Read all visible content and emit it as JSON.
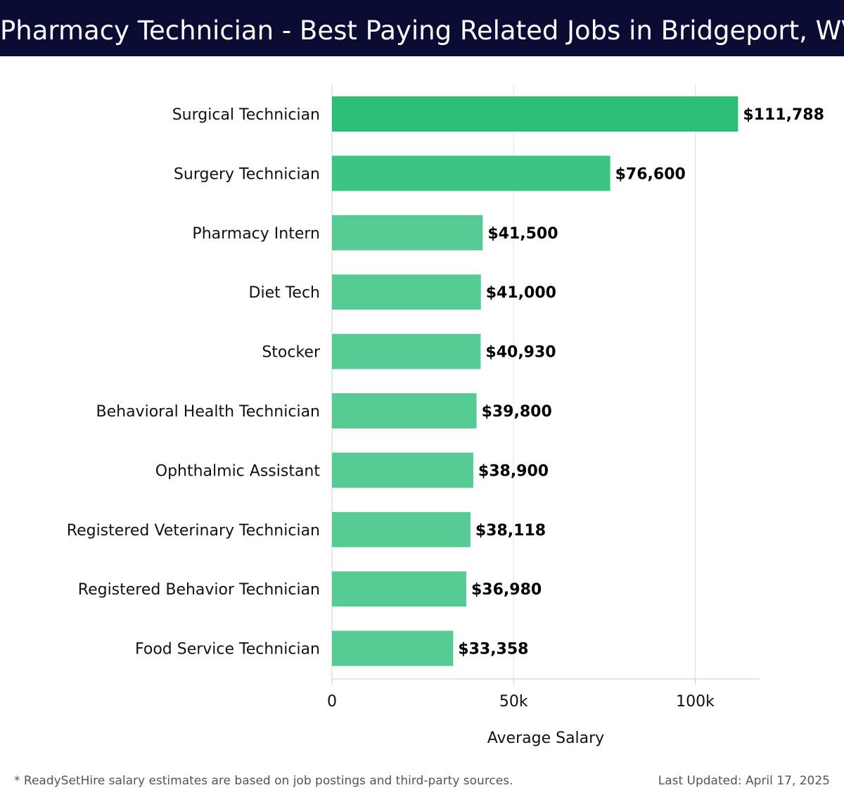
{
  "header": {
    "title": "Pharmacy Technician - Best Paying Related Jobs in Bridgeport, WV"
  },
  "chart_data": {
    "type": "bar",
    "orientation": "horizontal",
    "title": "Pharmacy Technician - Best Paying Related Jobs in Bridgeport, WV",
    "xlabel": "Average Salary",
    "ylabel": "",
    "xlim": [
      0,
      118000
    ],
    "x_ticks": [
      0,
      50000,
      100000
    ],
    "x_tick_labels": [
      "0",
      "50k",
      "100k"
    ],
    "grid": "vertical",
    "categories": [
      "Surgical Technician",
      "Surgery Technician",
      "Pharmacy Intern",
      "Diet Tech",
      "Stocker",
      "Behavioral Health Technician",
      "Ophthalmic Assistant",
      "Registered Veterinary Technician",
      "Registered Behavior Technician",
      "Food Service Technician"
    ],
    "values": [
      111788,
      76600,
      41500,
      41000,
      40930,
      39800,
      38900,
      38118,
      36980,
      33358
    ],
    "value_labels": [
      "$111,788",
      "$76,600",
      "$41,500",
      "$41,000",
      "$40,930",
      "$39,800",
      "$38,900",
      "$38,118",
      "$36,980",
      "$33,358"
    ],
    "colors": {
      "top_bar": "#2bbf78",
      "second_bar": "#3bc484",
      "other_bars": "#56cb94",
      "grid": "#e3e3e3",
      "axis": "#cccccc"
    }
  },
  "footer": {
    "note": "* ReadySetHire salary estimates are based on job postings and third-party sources.",
    "last_updated": "Last Updated: April 17, 2025"
  }
}
